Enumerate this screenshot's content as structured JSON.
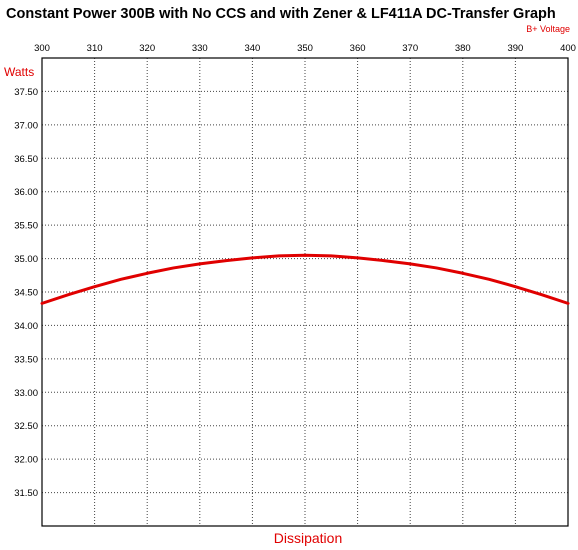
{
  "chart_data": {
    "type": "line",
    "title": "Constant Power 300B with No CCS and with Zener & LF411A DC-Transfer Graph",
    "xlabel": "Dissipation",
    "ylabel": "Watts",
    "x_axis_title": "B+ Voltage",
    "xlim": [
      300,
      400
    ],
    "ylim": [
      31.0,
      38.0
    ],
    "x_ticks": [
      "300",
      "310",
      "320",
      "330",
      "340",
      "350",
      "360",
      "370",
      "380",
      "390",
      "400"
    ],
    "y_ticks": [
      "37.50",
      "37.00",
      "36.50",
      "36.00",
      "35.50",
      "35.00",
      "34.50",
      "34.00",
      "33.50",
      "33.00",
      "32.50",
      "32.00",
      "31.50"
    ],
    "grid": true,
    "series_color": "#e00000",
    "label_color": "#e00000",
    "series": [
      {
        "x": [
          300,
          305,
          310,
          315,
          320,
          325,
          330,
          335,
          340,
          345,
          350,
          355,
          360,
          365,
          370,
          375,
          380,
          385,
          390,
          395,
          400
        ],
        "y": [
          34.33,
          34.46,
          34.58,
          34.69,
          34.78,
          34.86,
          34.92,
          34.97,
          35.01,
          35.04,
          35.05,
          35.04,
          35.01,
          34.97,
          34.92,
          34.86,
          34.78,
          34.69,
          34.58,
          34.46,
          34.33
        ]
      }
    ]
  }
}
